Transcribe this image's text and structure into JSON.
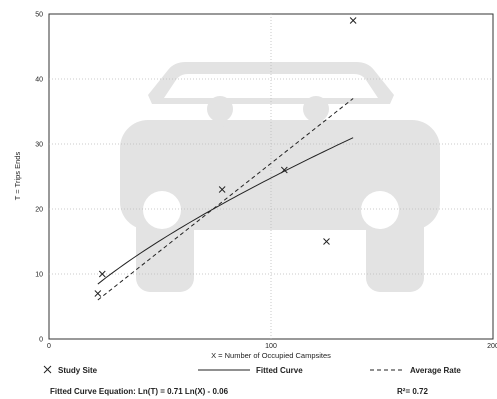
{
  "chart_data": {
    "type": "scatter",
    "title": "",
    "xlabel": "X = Number of Occupied Campsites",
    "ylabel": "T = Trips Ends",
    "xlim": [
      0,
      200
    ],
    "ylim": [
      0,
      50
    ],
    "x_ticks": [
      0,
      100,
      200
    ],
    "y_ticks": [
      0,
      10,
      20,
      30,
      40,
      50
    ],
    "grid": "dotted",
    "series": [
      {
        "name": "Study Site",
        "kind": "points",
        "marker": "x",
        "x": [
          22,
          24,
          78,
          106,
          125,
          137
        ],
        "y": [
          7,
          10,
          23,
          26,
          15,
          49
        ]
      },
      {
        "name": "Fitted Curve",
        "kind": "curve",
        "style": "solid",
        "equation": "Ln(T) = 0.71 Ln(X) - 0.06",
        "x_range": [
          22,
          137
        ]
      },
      {
        "name": "Average Rate",
        "kind": "line",
        "style": "dashed",
        "x": [
          22,
          137
        ],
        "y": [
          6,
          37
        ]
      }
    ],
    "legend": {
      "position": "bottom",
      "items": [
        "Study Site",
        "Fitted Curve",
        "Average Rate"
      ]
    },
    "equation_text": "Fitted Curve Equation: Ln(T) = 0.71 Ln(X) - 0.06",
    "r2_text": "R²= 0.72",
    "watermark_icon": "car-icon"
  }
}
